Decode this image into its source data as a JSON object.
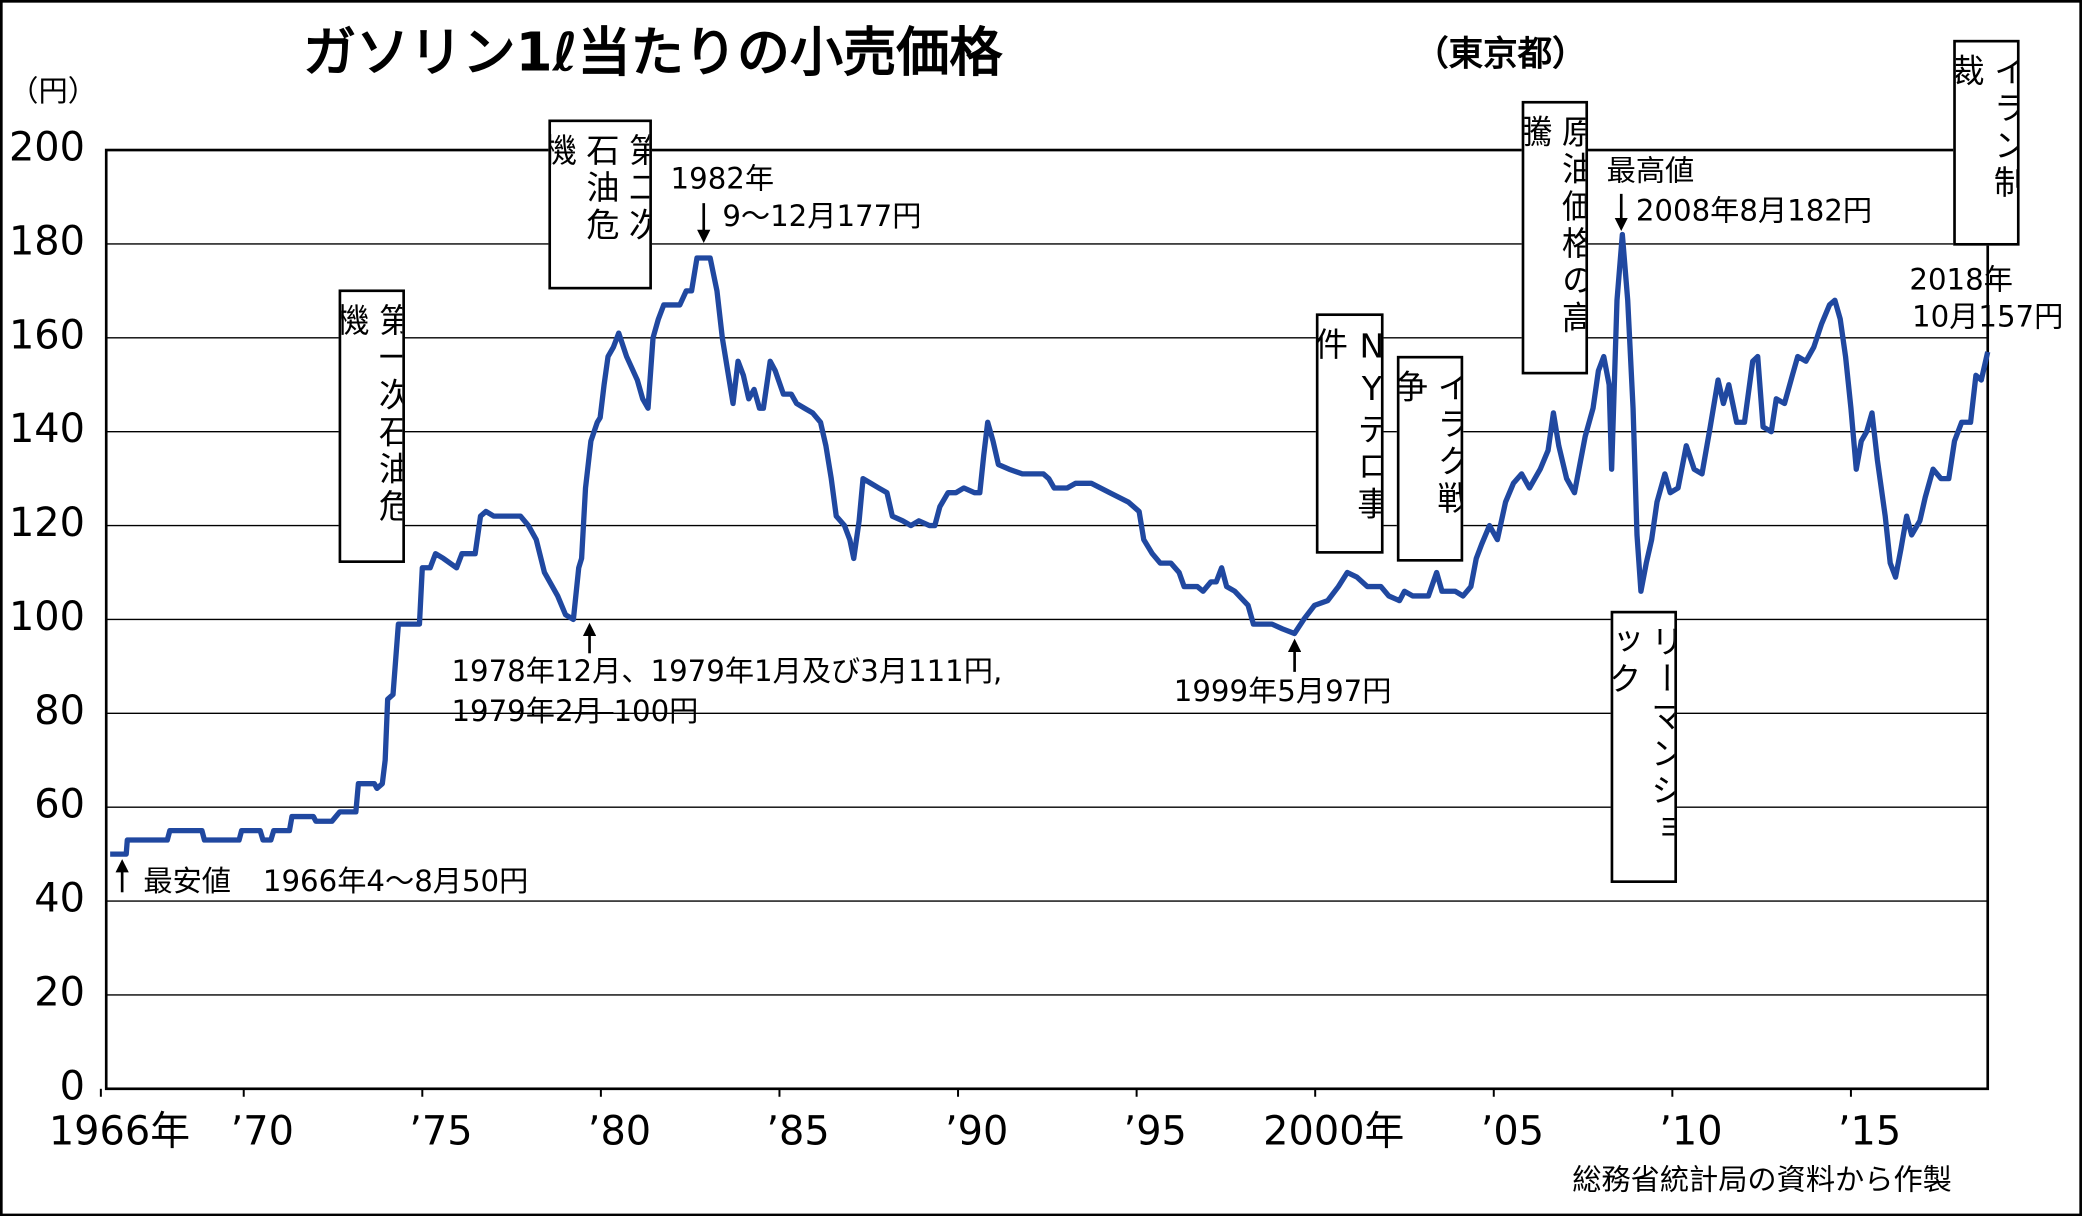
{
  "chart_data": {
    "type": "line",
    "title": "ガソリン1ℓ当たりの小売価格",
    "subtitle": "（東京都）",
    "y_unit": "（円）",
    "source": "総務省統計局の資料から作製",
    "color": "#2048a0",
    "grid": true,
    "xlim": [
      1966.15,
      2018.83
    ],
    "ylim": [
      0,
      200
    ],
    "yticks": [
      0,
      20,
      40,
      60,
      80,
      100,
      120,
      140,
      160,
      180,
      200
    ],
    "xticks": [
      {
        "value": 1966,
        "label": "1966年"
      },
      {
        "value": 1970,
        "label": "’70"
      },
      {
        "value": 1975,
        "label": "’75"
      },
      {
        "value": 1980,
        "label": "’80"
      },
      {
        "value": 1985,
        "label": "’85"
      },
      {
        "value": 1990,
        "label": "’90"
      },
      {
        "value": 1995,
        "label": "’95"
      },
      {
        "value": 2000,
        "label": "2000年"
      },
      {
        "value": 2005,
        "label": "’05"
      },
      {
        "value": 2010,
        "label": "’10"
      },
      {
        "value": 2015,
        "label": "’15"
      }
    ],
    "x": [
      1966.26,
      1966.71,
      1966.74,
      1967.86,
      1967.93,
      1968.83,
      1968.9,
      1969.87,
      1969.94,
      1970.46,
      1970.54,
      1970.76,
      1970.84,
      1971.28,
      1971.35,
      1971.95,
      1972.02,
      1972.47,
      1972.69,
      1973.14,
      1973.21,
      1973.66,
      1973.73,
      1973.88,
      1973.96,
      1974.03,
      1974.18,
      1974.33,
      1974.92,
      1975.0,
      1975.22,
      1975.37,
      1975.59,
      1975.96,
      1976.11,
      1976.48,
      1976.63,
      1976.78,
      1977.0,
      1977.75,
      1977.97,
      1978.19,
      1978.42,
      1978.79,
      1979.01,
      1979.23,
      1979.38,
      1979.46,
      1979.57,
      1979.72,
      1979.9,
      1979.98,
      1980.09,
      1980.2,
      1980.35,
      1980.5,
      1980.72,
      1981.02,
      1981.17,
      1981.32,
      1981.46,
      1981.61,
      1981.76,
      1982.21,
      1982.39,
      1982.54,
      1982.69,
      1983.06,
      1983.25,
      1983.4,
      1983.55,
      1983.7,
      1983.84,
      1983.99,
      1984.14,
      1984.29,
      1984.44,
      1984.55,
      1984.74,
      1984.88,
      1985.11,
      1985.33,
      1985.48,
      1985.7,
      1985.93,
      1986.15,
      1986.3,
      1986.45,
      1986.59,
      1986.82,
      1986.97,
      1987.08,
      1987.23,
      1987.34,
      1987.56,
      1987.78,
      1988.01,
      1988.16,
      1988.45,
      1988.68,
      1988.9,
      1989.2,
      1989.35,
      1989.49,
      1989.72,
      1989.94,
      1990.16,
      1990.46,
      1990.61,
      1990.72,
      1990.83,
      1990.98,
      1991.13,
      1991.43,
      1991.8,
      1992.39,
      1992.54,
      1992.69,
      1993.06,
      1993.29,
      1993.73,
      1994.25,
      1994.77,
      1995.07,
      1995.2,
      1995.44,
      1995.66,
      1995.96,
      1996.19,
      1996.33,
      1996.7,
      1996.86,
      1997.08,
      1997.23,
      1997.38,
      1997.52,
      1997.75,
      1998.12,
      1998.27,
      1998.79,
      1999.08,
      1999.42,
      1999.68,
      1999.98,
      2000.35,
      2000.65,
      2000.9,
      2001.17,
      2001.46,
      2001.84,
      2002.06,
      2002.36,
      2002.5,
      2002.73,
      2003.17,
      2003.4,
      2003.55,
      2003.92,
      2004.14,
      2004.36,
      2004.51,
      2004.66,
      2004.88,
      2005.1,
      2005.33,
      2005.55,
      2005.78,
      2006.0,
      2006.3,
      2006.52,
      2006.67,
      2006.82,
      2007.04,
      2007.26,
      2007.41,
      2007.56,
      2007.78,
      2007.93,
      2008.08,
      2008.23,
      2008.3,
      2008.45,
      2008.6,
      2008.75,
      2008.9,
      2009.01,
      2009.12,
      2009.27,
      2009.42,
      2009.57,
      2009.79,
      2009.94,
      2010.16,
      2010.39,
      2010.61,
      2010.83,
      2011.06,
      2011.28,
      2011.43,
      2011.58,
      2011.8,
      2012.02,
      2012.25,
      2012.39,
      2012.54,
      2012.77,
      2012.91,
      2013.14,
      2013.36,
      2013.51,
      2013.74,
      2013.96,
      2014.18,
      2014.4,
      2014.55,
      2014.7,
      2014.85,
      2015.0,
      2015.15,
      2015.29,
      2015.44,
      2015.59,
      2015.74,
      2015.96,
      2016.1,
      2016.25,
      2016.4,
      2016.56,
      2016.7,
      2016.93,
      2017.08,
      2017.3,
      2017.52,
      2017.74,
      2017.9,
      2018.1,
      2018.35,
      2018.5,
      2018.65,
      2018.83
    ],
    "values": [
      50,
      50,
      53,
      53,
      55,
      55,
      53,
      53,
      55,
      55,
      53,
      53,
      55,
      55,
      58,
      58,
      57,
      57,
      59,
      59,
      65,
      65,
      64,
      65,
      70,
      83,
      84,
      99,
      99,
      111,
      111,
      114,
      113,
      111,
      114,
      114,
      122,
      123,
      122,
      122,
      120,
      117,
      110,
      105,
      101,
      100,
      111,
      113,
      128,
      138,
      142,
      143,
      150,
      156,
      158,
      161,
      156,
      151,
      147,
      145,
      160,
      164,
      167,
      167,
      170,
      170,
      177,
      177,
      170,
      160,
      153,
      146,
      155,
      152,
      147,
      149,
      145,
      145,
      155,
      153,
      148,
      148,
      146,
      145,
      144,
      142,
      137,
      130,
      122,
      120,
      117,
      113,
      121,
      130,
      129,
      128,
      127,
      122,
      121,
      120,
      121,
      120,
      120,
      124,
      127,
      127,
      128,
      127,
      127,
      135,
      142,
      138,
      133,
      132,
      131,
      131,
      130,
      128,
      128,
      129,
      129,
      127,
      125,
      123,
      117,
      114,
      112,
      112,
      110,
      107,
      107,
      106,
      108,
      108,
      111,
      107,
      106,
      103,
      99,
      99,
      98,
      97,
      100,
      103,
      104,
      107,
      110,
      109,
      107,
      107,
      105,
      104,
      106,
      105,
      105,
      110,
      106,
      106,
      105,
      107,
      113,
      116,
      120,
      117,
      125,
      129,
      131,
      128,
      132,
      136,
      144,
      137,
      130,
      127,
      133,
      139,
      145,
      153,
      156,
      150,
      132,
      168,
      182,
      168,
      145,
      118,
      106,
      112,
      117,
      125,
      131,
      127,
      128,
      137,
      132,
      131,
      141,
      151,
      146,
      150,
      142,
      142,
      155,
      156,
      141,
      140,
      147,
      146,
      152,
      156,
      155,
      158,
      163,
      167,
      168,
      164,
      156,
      145,
      132,
      138,
      140,
      144,
      134,
      122,
      112,
      109,
      115,
      122,
      118,
      121,
      126,
      132,
      130,
      130,
      138,
      142,
      142,
      152,
      151,
      157
    ],
    "events": [
      "第一次石油危機",
      "第二次石油危機",
      "NYテロ事件",
      "イラク戦争",
      "原油価格の高騰",
      "リーマンショック",
      "イラン制裁"
    ],
    "annotations": [
      "1982年",
      "9～12月177円",
      "最高値",
      "2008年8月182円",
      "2018年",
      "10月157円",
      "1978年12月、1979年1月及び3月111円,",
      "1979年2月",
      "100円",
      "1999年5月97円",
      "最安値",
      "1966年4～8月50円"
    ]
  }
}
